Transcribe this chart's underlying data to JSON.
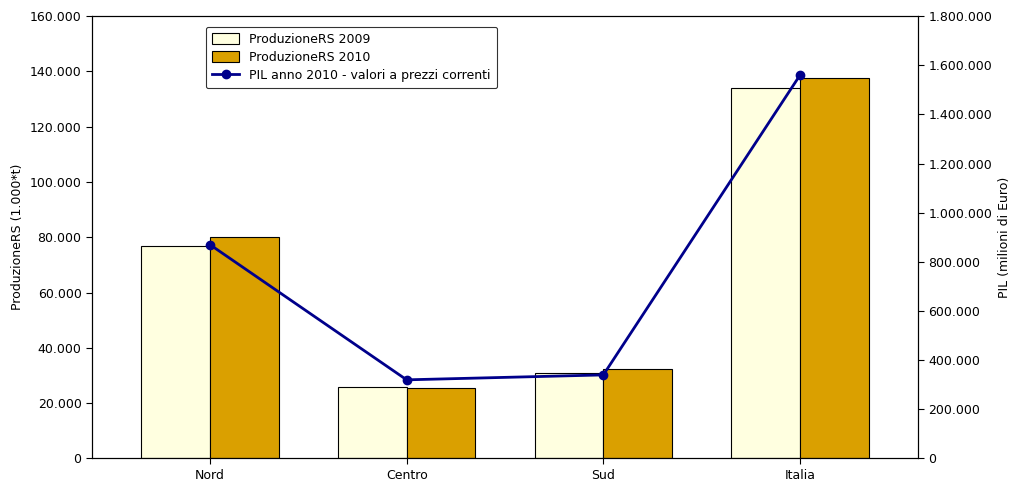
{
  "categories": [
    "Nord",
    "Centro",
    "Sud",
    "Italia"
  ],
  "prod_2009": [
    77000,
    26000,
    31000,
    134000
  ],
  "prod_2010": [
    80000,
    25500,
    32500,
    137500
  ],
  "pil_2010": [
    870000,
    320000,
    340000,
    1560000
  ],
  "bar_color_2009": "#FFFFE0",
  "bar_color_2010": "#DAA000",
  "bar_edgecolor": "#000000",
  "line_color": "#00008B",
  "line_marker": "o",
  "legend_labels": [
    "ProduzioneRS 2009",
    "ProduzioneRS 2010",
    "PIL anno 2010 - valori a prezzi correnti"
  ],
  "ylabel_left": "ProduzioneRS (1.000*t)",
  "ylabel_right": "PIL (milioni di Euro)",
  "ylim_left": [
    0,
    160000
  ],
  "ylim_right": [
    0,
    1800000
  ],
  "yticks_left": [
    0,
    20000,
    40000,
    60000,
    80000,
    100000,
    120000,
    140000,
    160000
  ],
  "yticks_right": [
    0,
    200000,
    400000,
    600000,
    800000,
    1000000,
    1200000,
    1400000,
    1600000,
    1800000
  ],
  "ytick_labels_left": [
    "0",
    "20.000",
    "40.000",
    "60.000",
    "80.000",
    "100.000",
    "120.000",
    "140.000",
    "160.000"
  ],
  "ytick_labels_right": [
    "0",
    "200.000",
    "400.000",
    "600.000",
    "800.000",
    "1.000.000",
    "1.200.000",
    "1.400.000",
    "1.600.000",
    "1.800.000"
  ],
  "bar_width": 0.35,
  "background_color": "#FFFFFF",
  "plot_bg_color": "#FFFFFF",
  "font_size": 9,
  "title_font_size": 10,
  "figsize": [
    10.22,
    4.93
  ],
  "dpi": 100
}
